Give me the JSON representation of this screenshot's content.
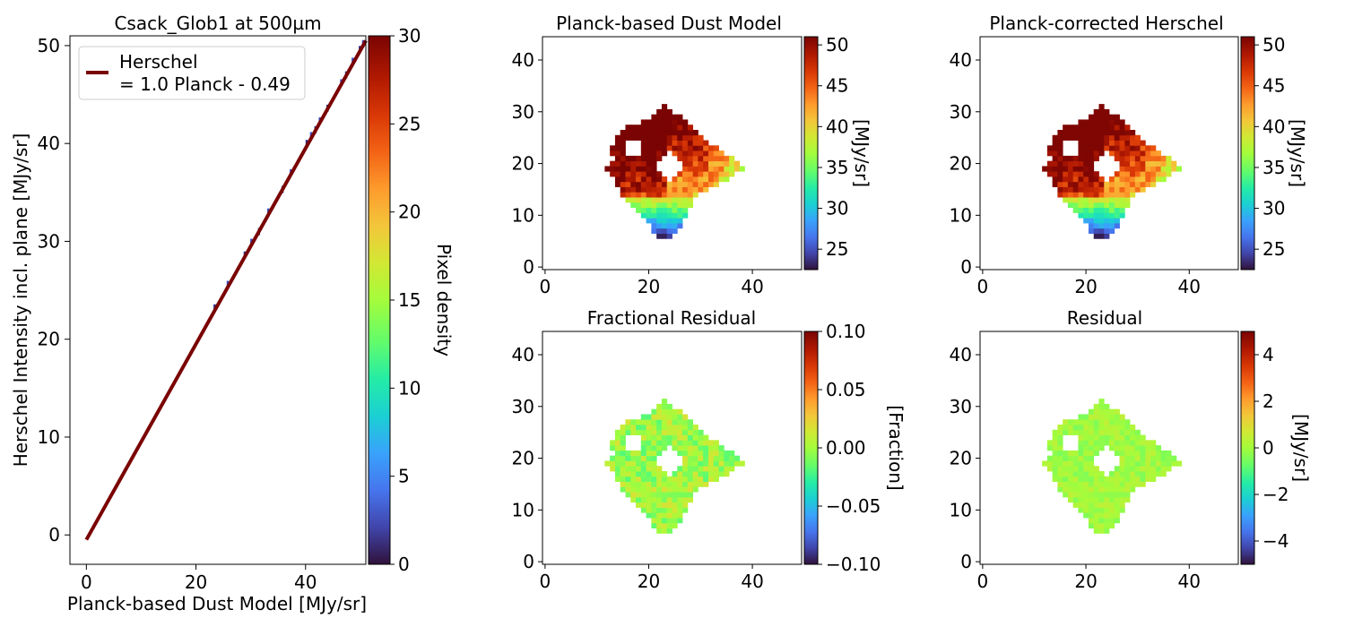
{
  "chart_data": [
    {
      "type": "scatter",
      "panel": "scatter",
      "title": "Csack_Glob1 at 500µm",
      "xlabel": "Planck-based Dust Model [MJy/sr]",
      "ylabel": "Herschel Intensity incl. plane [MJy/sr]",
      "xlim": [
        -3,
        51
      ],
      "ylim": [
        -3,
        51
      ],
      "xticks": [
        0,
        20,
        40
      ],
      "yticks": [
        0,
        10,
        20,
        30,
        40,
        50
      ],
      "grid": false,
      "legend": {
        "position": "top-left",
        "label_line1": "Herschel",
        "label_line2": "= 1.0 Planck - 0.49"
      },
      "fit": {
        "slope": 1.0,
        "intercept": -0.49,
        "x_range": [
          0,
          51
        ],
        "color": "#7a0403"
      },
      "density_points": [
        {
          "x": 23.4,
          "y": 23.2
        },
        {
          "x": 25.8,
          "y": 25.6
        },
        {
          "x": 28.9,
          "y": 28.6
        },
        {
          "x": 30.1,
          "y": 29.9
        },
        {
          "x": 31.5,
          "y": 31.0
        },
        {
          "x": 33.2,
          "y": 33.0
        },
        {
          "x": 35.8,
          "y": 35.3
        },
        {
          "x": 37.3,
          "y": 37.0
        },
        {
          "x": 40.2,
          "y": 40.0
        },
        {
          "x": 41.0,
          "y": 40.8
        },
        {
          "x": 41.8,
          "y": 41.4
        },
        {
          "x": 42.6,
          "y": 42.3
        },
        {
          "x": 44.0,
          "y": 43.6
        },
        {
          "x": 46.5,
          "y": 46.2
        },
        {
          "x": 47.4,
          "y": 47.0
        },
        {
          "x": 48.6,
          "y": 48.4
        },
        {
          "x": 49.9,
          "y": 49.6
        },
        {
          "x": 50.5,
          "y": 50.2
        }
      ],
      "colorbar": {
        "label": "Pixel density",
        "range": [
          0,
          30
        ],
        "ticks": [
          0,
          5,
          10,
          15,
          20,
          25,
          30
        ]
      }
    },
    {
      "type": "heatmap",
      "panel": "model",
      "title": "Planck-based Dust Model",
      "xlim": [
        0,
        49
      ],
      "ylim": [
        0,
        44
      ],
      "xticks": [
        0,
        20,
        40
      ],
      "yticks": [
        0,
        10,
        20,
        30,
        40
      ],
      "colorbar": {
        "label": "[MJy/sr]",
        "range": [
          22.5,
          51
        ],
        "ticks": [
          25,
          30,
          35,
          40,
          45,
          50
        ]
      }
    },
    {
      "type": "heatmap",
      "panel": "corrected",
      "title": "Planck-corrected Herschel",
      "xlim": [
        0,
        49
      ],
      "ylim": [
        0,
        44
      ],
      "xticks": [
        0,
        20,
        40
      ],
      "yticks": [
        0,
        10,
        20,
        30,
        40
      ],
      "colorbar": {
        "label": "[MJy/sr]",
        "range": [
          22.5,
          51
        ],
        "ticks": [
          25,
          30,
          35,
          40,
          45,
          50
        ]
      }
    },
    {
      "type": "heatmap",
      "panel": "frac",
      "title": "Fractional Residual",
      "xlim": [
        0,
        49
      ],
      "ylim": [
        0,
        44
      ],
      "xticks": [
        0,
        20,
        40
      ],
      "yticks": [
        0,
        10,
        20,
        30,
        40
      ],
      "colorbar": {
        "label": "[Fraction]",
        "range": [
          -0.1,
          0.1
        ],
        "ticks": [
          "−0.10",
          "−0.05",
          "0.00",
          "0.05",
          "0.10"
        ]
      }
    },
    {
      "type": "heatmap",
      "panel": "resid",
      "title": "Residual",
      "xlim": [
        0,
        49
      ],
      "ylim": [
        0,
        44
      ],
      "xticks": [
        0,
        20,
        40
      ],
      "yticks": [
        0,
        10,
        20,
        30,
        40
      ],
      "colorbar": {
        "label": "[MJy/sr]",
        "range": [
          -5,
          5
        ],
        "ticks": [
          "−4",
          "−2",
          "0",
          "2",
          "4"
        ]
      }
    }
  ]
}
